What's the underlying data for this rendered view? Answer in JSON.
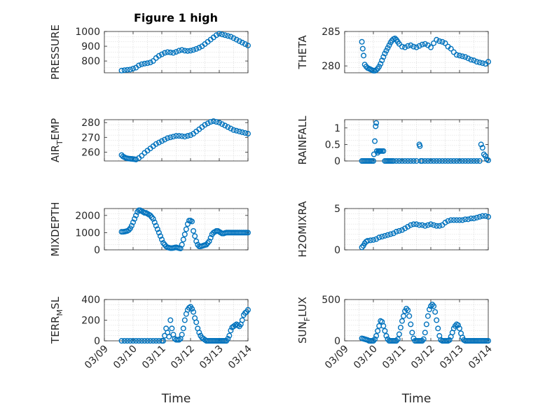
{
  "figure_title": "Figure 1 high",
  "colors": {
    "marker": "#0072BD",
    "axes": "#262626",
    "grid": "#d6d6d6"
  },
  "chart_data": [
    {
      "type": "scatter",
      "title": "Figure 1 high",
      "ylabel": "PRESSURE",
      "ylabel_sub": null,
      "xlabel": "",
      "xlim": [
        0,
        5
      ],
      "ylim": [
        720,
        1000
      ],
      "yticks": [
        800,
        900,
        1000
      ],
      "yticklabels": [
        "800",
        "900",
        "1000"
      ],
      "xticks": [
        0,
        1,
        2,
        3,
        4,
        5
      ],
      "show_xticklabels": false,
      "x": [
        0.6,
        0.7,
        0.8,
        0.9,
        1.0,
        1.1,
        1.2,
        1.3,
        1.4,
        1.5,
        1.6,
        1.7,
        1.8,
        1.9,
        2.0,
        2.1,
        2.2,
        2.3,
        2.4,
        2.5,
        2.6,
        2.7,
        2.8,
        2.9,
        3.0,
        3.1,
        3.2,
        3.3,
        3.4,
        3.5,
        3.6,
        3.7,
        3.8,
        3.9,
        4.0,
        4.1,
        4.2,
        4.3,
        4.4,
        4.5,
        4.6,
        4.7,
        4.8,
        4.9,
        5.0
      ],
      "y": [
        735,
        738,
        740,
        742,
        748,
        755,
        770,
        778,
        782,
        785,
        790,
        800,
        820,
        835,
        845,
        855,
        860,
        858,
        855,
        862,
        870,
        875,
        870,
        868,
        870,
        875,
        882,
        890,
        900,
        915,
        930,
        945,
        960,
        975,
        985,
        980,
        975,
        970,
        965,
        955,
        945,
        935,
        925,
        915,
        905
      ]
    },
    {
      "type": "scatter",
      "title": "",
      "ylabel": "THETA",
      "ylabel_sub": null,
      "xlabel": "",
      "xlim": [
        0,
        5
      ],
      "ylim": [
        279,
        285
      ],
      "yticks": [
        280,
        285
      ],
      "yticklabels": [
        "280",
        "285"
      ],
      "xticks": [
        0,
        1,
        2,
        3,
        4,
        5
      ],
      "show_xticklabels": false,
      "x": [
        0.6,
        0.63,
        0.66,
        0.7,
        0.75,
        0.8,
        0.85,
        0.9,
        0.95,
        1.0,
        1.05,
        1.1,
        1.15,
        1.2,
        1.25,
        1.3,
        1.35,
        1.4,
        1.45,
        1.5,
        1.55,
        1.6,
        1.65,
        1.7,
        1.75,
        1.8,
        1.85,
        1.9,
        2.0,
        2.1,
        2.2,
        2.3,
        2.4,
        2.5,
        2.6,
        2.7,
        2.8,
        2.9,
        3.0,
        3.1,
        3.2,
        3.3,
        3.4,
        3.5,
        3.6,
        3.7,
        3.8,
        3.9,
        4.0,
        4.1,
        4.2,
        4.3,
        4.4,
        4.5,
        4.6,
        4.7,
        4.8,
        4.9,
        5.0
      ],
      "y": [
        283.5,
        282.5,
        281.5,
        280.2,
        279.9,
        279.7,
        279.6,
        279.5,
        279.4,
        279.3,
        279.3,
        279.4,
        279.6,
        279.9,
        280.3,
        280.8,
        281.3,
        281.8,
        282.2,
        282.6,
        283.0,
        283.4,
        283.7,
        283.9,
        284.0,
        283.8,
        283.5,
        283.2,
        282.8,
        282.7,
        282.9,
        283.0,
        282.8,
        282.7,
        282.9,
        283.1,
        283.2,
        283.0,
        282.7,
        283.3,
        283.8,
        283.6,
        283.5,
        283.3,
        282.8,
        282.5,
        282.0,
        281.6,
        281.5,
        281.4,
        281.3,
        281.1,
        280.9,
        280.8,
        280.6,
        280.5,
        280.4,
        280.3,
        280.6
      ]
    },
    {
      "type": "scatter",
      "title": "",
      "ylabel": "AIR",
      "ylabel_sub": "T",
      "ylabel_rest": "EMP",
      "xlabel": "",
      "xlim": [
        0,
        5
      ],
      "ylim": [
        254,
        282
      ],
      "yticks": [
        260,
        270,
        280
      ],
      "yticklabels": [
        "260",
        "270",
        "280"
      ],
      "xticks": [
        0,
        1,
        2,
        3,
        4,
        5
      ],
      "show_xticklabels": false,
      "x": [
        0.6,
        0.65,
        0.7,
        0.75,
        0.8,
        0.85,
        0.9,
        0.95,
        1.0,
        1.05,
        1.1,
        1.2,
        1.3,
        1.4,
        1.5,
        1.6,
        1.7,
        1.8,
        1.9,
        2.0,
        2.1,
        2.2,
        2.3,
        2.4,
        2.5,
        2.6,
        2.7,
        2.8,
        2.9,
        3.0,
        3.1,
        3.2,
        3.3,
        3.4,
        3.5,
        3.6,
        3.7,
        3.8,
        3.9,
        4.0,
        4.1,
        4.2,
        4.3,
        4.4,
        4.5,
        4.6,
        4.7,
        4.8,
        4.9,
        5.0
      ],
      "y": [
        258,
        257,
        256.5,
        256,
        255.8,
        255.6,
        255.5,
        255.4,
        255.3,
        255.2,
        255.0,
        256,
        257.5,
        259.5,
        261,
        262.5,
        264,
        265.5,
        266.5,
        267.5,
        268.5,
        269.5,
        270,
        270.5,
        271,
        271,
        270.8,
        270.5,
        271,
        271.5,
        272.5,
        274,
        275.5,
        277,
        278.5,
        279.5,
        280.5,
        281,
        280.5,
        280,
        279,
        278,
        277,
        276,
        275,
        274.5,
        274,
        273.5,
        273,
        272.5
      ]
    },
    {
      "type": "scatter",
      "title": "",
      "ylabel": "RAINFALL",
      "ylabel_sub": null,
      "xlabel": "",
      "xlim": [
        0,
        5
      ],
      "ylim": [
        0,
        1.25
      ],
      "yticks": [
        0,
        0.5,
        1
      ],
      "yticklabels": [
        "0",
        "0.5",
        "1"
      ],
      "xticks": [
        0,
        1,
        2,
        3,
        4,
        5
      ],
      "show_xticklabels": false,
      "x": [
        0.6,
        0.65,
        0.7,
        0.75,
        0.8,
        0.85,
        0.9,
        0.95,
        1.0,
        1.02,
        1.05,
        1.08,
        1.1,
        1.12,
        1.15,
        1.18,
        1.2,
        1.22,
        1.25,
        1.3,
        1.35,
        1.4,
        1.45,
        1.5,
        1.55,
        1.6,
        1.65,
        1.7,
        1.8,
        1.9,
        2.0,
        2.1,
        2.2,
        2.3,
        2.4,
        2.5,
        2.6,
        2.62,
        2.65,
        2.7,
        2.8,
        2.9,
        3.0,
        3.1,
        3.2,
        3.3,
        3.4,
        3.5,
        3.6,
        3.7,
        3.8,
        3.9,
        4.0,
        4.1,
        4.2,
        4.3,
        4.4,
        4.5,
        4.6,
        4.7,
        4.75,
        4.8,
        4.85,
        4.9,
        4.95,
        5.0
      ],
      "y": [
        0,
        0,
        0,
        0,
        0,
        0,
        0,
        0,
        0,
        0.2,
        0.6,
        1.05,
        1.15,
        0.3,
        0.25,
        0.3,
        0.3,
        0.3,
        0.3,
        0.3,
        0.3,
        0,
        0,
        0,
        0,
        0,
        0,
        0,
        0,
        0,
        0,
        0,
        0,
        0,
        0,
        0,
        0.5,
        0.45,
        0,
        0,
        0,
        0,
        0,
        0,
        0,
        0,
        0,
        0,
        0,
        0,
        0,
        0,
        0,
        0,
        0,
        0,
        0,
        0,
        0,
        0,
        0.5,
        0.4,
        0.2,
        0.15,
        0.05,
        0.02
      ]
    },
    {
      "type": "scatter",
      "title": "",
      "ylabel": "MIXDEPTH",
      "ylabel_sub": null,
      "xlabel": "",
      "xlim": [
        0,
        5
      ],
      "ylim": [
        0,
        2400
      ],
      "yticks": [
        0,
        1000,
        2000
      ],
      "yticklabels": [
        "0",
        "1000",
        "2000"
      ],
      "xticks": [
        0,
        1,
        2,
        3,
        4,
        5
      ],
      "show_xticklabels": false,
      "x": [
        0.6,
        0.65,
        0.7,
        0.75,
        0.8,
        0.85,
        0.9,
        0.95,
        1.0,
        1.05,
        1.1,
        1.15,
        1.2,
        1.25,
        1.3,
        1.35,
        1.4,
        1.45,
        1.5,
        1.55,
        1.6,
        1.65,
        1.7,
        1.75,
        1.8,
        1.85,
        1.9,
        1.95,
        2.0,
        2.05,
        2.1,
        2.15,
        2.2,
        2.25,
        2.3,
        2.35,
        2.4,
        2.45,
        2.5,
        2.55,
        2.6,
        2.65,
        2.7,
        2.75,
        2.8,
        2.85,
        2.9,
        2.95,
        3.0,
        3.05,
        3.1,
        3.15,
        3.2,
        3.25,
        3.3,
        3.35,
        3.4,
        3.45,
        3.5,
        3.55,
        3.6,
        3.65,
        3.7,
        3.75,
        3.8,
        3.85,
        3.9,
        3.95,
        4.0,
        4.05,
        4.1,
        4.15,
        4.2,
        4.25,
        4.3,
        4.35,
        4.4,
        4.45,
        4.5,
        4.55,
        4.6,
        4.65,
        4.7,
        4.75,
        4.8,
        4.85,
        4.9,
        4.95,
        5.0
      ],
      "y": [
        1050,
        1050,
        1060,
        1080,
        1100,
        1150,
        1250,
        1400,
        1600,
        1800,
        2000,
        2200,
        2300,
        2300,
        2250,
        2200,
        2150,
        2150,
        2100,
        2050,
        2000,
        1900,
        1800,
        1600,
        1400,
        1200,
        1000,
        800,
        600,
        400,
        300,
        200,
        150,
        120,
        100,
        100,
        110,
        130,
        150,
        120,
        100,
        80,
        300,
        600,
        900,
        1200,
        1500,
        1700,
        1700,
        1650,
        1100,
        800,
        500,
        300,
        200,
        200,
        220,
        250,
        280,
        300,
        400,
        500,
        700,
        900,
        1000,
        1050,
        1100,
        1100,
        1050,
        1000,
        950,
        950,
        980,
        1000,
        1000,
        1000,
        1000,
        1000,
        1000,
        1000,
        1000,
        1000,
        1000,
        1000,
        1000,
        1000,
        1000,
        1000,
        1000
      ]
    },
    {
      "type": "scatter",
      "title": "",
      "ylabel": "H2OMIXRA",
      "ylabel_sub": null,
      "xlabel": "",
      "xlim": [
        0,
        5
      ],
      "ylim": [
        0,
        5
      ],
      "yticks": [
        0,
        5
      ],
      "yticklabels": [
        "0",
        "5"
      ],
      "xticks": [
        0,
        1,
        2,
        3,
        4,
        5
      ],
      "show_xticklabels": false,
      "x": [
        0.6,
        0.65,
        0.7,
        0.75,
        0.8,
        0.9,
        1.0,
        1.1,
        1.2,
        1.3,
        1.4,
        1.5,
        1.6,
        1.7,
        1.8,
        1.9,
        2.0,
        2.1,
        2.2,
        2.3,
        2.4,
        2.5,
        2.6,
        2.7,
        2.8,
        2.9,
        3.0,
        3.1,
        3.2,
        3.3,
        3.4,
        3.5,
        3.6,
        3.7,
        3.8,
        3.9,
        4.0,
        4.1,
        4.2,
        4.3,
        4.4,
        4.5,
        4.6,
        4.7,
        4.8,
        4.9,
        5.0
      ],
      "y": [
        0.3,
        0.5,
        0.8,
        1.0,
        1.1,
        1.15,
        1.2,
        1.3,
        1.5,
        1.6,
        1.7,
        1.8,
        1.9,
        2.0,
        2.2,
        2.3,
        2.4,
        2.6,
        2.8,
        3.0,
        3.1,
        3.1,
        3.0,
        3.0,
        2.9,
        3.0,
        3.1,
        3.0,
        2.9,
        2.9,
        3.0,
        3.3,
        3.5,
        3.6,
        3.6,
        3.6,
        3.6,
        3.6,
        3.7,
        3.7,
        3.8,
        3.8,
        3.9,
        4.0,
        4.1,
        4.1,
        4.0
      ]
    },
    {
      "type": "scatter",
      "title": "",
      "ylabel": "TERR",
      "ylabel_sub": "M",
      "ylabel_rest": "SL",
      "xlabel": "Time",
      "xlim": [
        0,
        5
      ],
      "ylim": [
        0,
        400
      ],
      "yticks": [
        0,
        200,
        400
      ],
      "yticklabels": [
        "0",
        "200",
        "400"
      ],
      "xticks": [
        0,
        1,
        2,
        3,
        4,
        5
      ],
      "show_xticklabels": true,
      "xticklabels": [
        "03/09",
        "03/10",
        "03/11",
        "03/12",
        "03/13",
        "03/14"
      ],
      "x": [
        0.6,
        0.7,
        0.8,
        0.9,
        1.0,
        1.1,
        1.2,
        1.3,
        1.4,
        1.5,
        1.6,
        1.7,
        1.8,
        1.9,
        2.0,
        2.05,
        2.1,
        2.15,
        2.2,
        2.25,
        2.3,
        2.35,
        2.4,
        2.45,
        2.5,
        2.55,
        2.6,
        2.65,
        2.7,
        2.75,
        2.8,
        2.85,
        2.9,
        2.95,
        3.0,
        3.05,
        3.1,
        3.15,
        3.2,
        3.25,
        3.3,
        3.35,
        3.4,
        3.45,
        3.5,
        3.55,
        3.6,
        3.65,
        3.7,
        3.75,
        3.8,
        3.85,
        3.9,
        3.95,
        4.0,
        4.05,
        4.1,
        4.15,
        4.2,
        4.25,
        4.3,
        4.35,
        4.4,
        4.45,
        4.5,
        4.55,
        4.6,
        4.65,
        4.7,
        4.75,
        4.8,
        4.85,
        4.9,
        4.95,
        5.0
      ],
      "y": [
        0,
        0,
        0,
        0,
        0,
        0,
        0,
        0,
        0,
        0,
        0,
        0,
        0,
        0,
        0,
        0,
        50,
        120,
        80,
        40,
        200,
        120,
        60,
        20,
        10,
        10,
        10,
        20,
        60,
        120,
        200,
        260,
        300,
        320,
        330,
        310,
        280,
        220,
        180,
        120,
        80,
        50,
        30,
        20,
        10,
        0,
        0,
        0,
        0,
        0,
        0,
        0,
        0,
        0,
        0,
        0,
        0,
        0,
        0,
        0,
        20,
        50,
        100,
        130,
        140,
        150,
        160,
        150,
        140,
        160,
        200,
        250,
        270,
        280,
        300
      ]
    },
    {
      "type": "scatter",
      "title": "",
      "ylabel": "SUN",
      "ylabel_sub": "F",
      "ylabel_rest": "LUX",
      "xlabel": "Time",
      "xlim": [
        0,
        5
      ],
      "ylim": [
        0,
        500
      ],
      "yticks": [
        0,
        500
      ],
      "yticklabels": [
        "0",
        "500"
      ],
      "xticks": [
        0,
        1,
        2,
        3,
        4,
        5
      ],
      "show_xticklabels": true,
      "xticklabels": [
        "03/09",
        "03/10",
        "03/11",
        "03/12",
        "03/13",
        "03/14"
      ],
      "x": [
        0.6,
        0.65,
        0.7,
        0.75,
        0.8,
        0.85,
        0.9,
        0.95,
        1.0,
        1.05,
        1.1,
        1.15,
        1.2,
        1.25,
        1.3,
        1.35,
        1.4,
        1.45,
        1.5,
        1.55,
        1.6,
        1.65,
        1.7,
        1.75,
        1.8,
        1.85,
        1.9,
        1.95,
        2.0,
        2.05,
        2.1,
        2.15,
        2.2,
        2.25,
        2.3,
        2.35,
        2.4,
        2.45,
        2.5,
        2.55,
        2.6,
        2.65,
        2.7,
        2.75,
        2.8,
        2.85,
        2.9,
        2.95,
        3.0,
        3.05,
        3.1,
        3.15,
        3.2,
        3.25,
        3.3,
        3.35,
        3.4,
        3.45,
        3.5,
        3.55,
        3.6,
        3.65,
        3.7,
        3.75,
        3.8,
        3.85,
        3.9,
        3.95,
        4.0,
        4.05,
        4.1,
        4.15,
        4.2,
        4.25,
        4.3,
        4.35,
        4.4,
        4.45,
        4.5,
        4.55,
        4.6,
        4.65,
        4.7,
        4.75,
        4.8,
        4.85,
        4.9,
        4.95,
        5.0
      ],
      "y": [
        30,
        25,
        20,
        15,
        10,
        0,
        0,
        0,
        0,
        20,
        60,
        120,
        180,
        240,
        230,
        180,
        120,
        60,
        20,
        0,
        0,
        0,
        0,
        0,
        0,
        20,
        80,
        160,
        240,
        300,
        360,
        390,
        370,
        300,
        200,
        100,
        30,
        0,
        0,
        0,
        0,
        0,
        0,
        20,
        100,
        200,
        300,
        380,
        420,
        440,
        420,
        350,
        250,
        150,
        60,
        10,
        0,
        0,
        0,
        0,
        0,
        10,
        50,
        100,
        150,
        180,
        200,
        190,
        150,
        90,
        40,
        10,
        0,
        0,
        0,
        0,
        0,
        0,
        0,
        0,
        0,
        0,
        0,
        0,
        0,
        0,
        0,
        0,
        0
      ]
    }
  ]
}
